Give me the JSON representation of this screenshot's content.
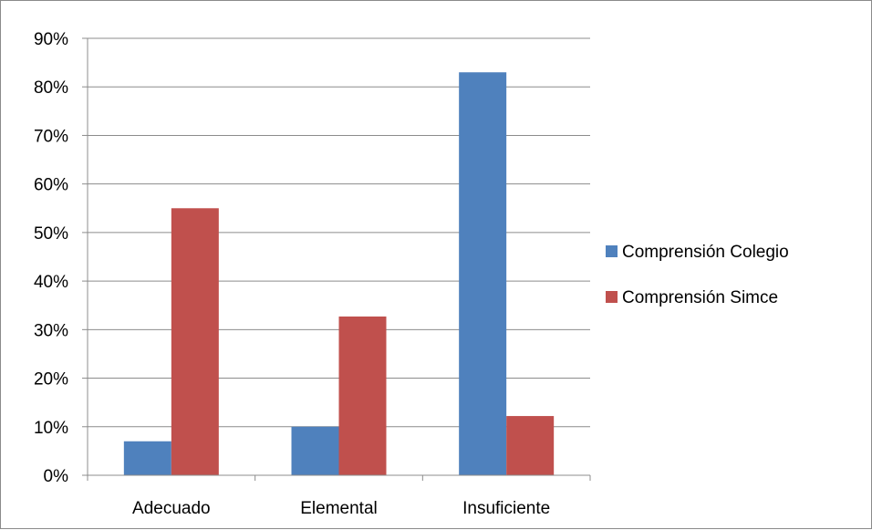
{
  "chart_data": {
    "type": "bar",
    "categories": [
      "Adecuado",
      "Elemental",
      "Insuficiente"
    ],
    "series": [
      {
        "name": "Comprensión Colegio",
        "values": [
          7,
          10,
          83
        ],
        "color": "#4F81BD"
      },
      {
        "name": "Comprensión Simce",
        "values": [
          55,
          32.7,
          12.2
        ],
        "color": "#C0504D"
      }
    ],
    "ylim": [
      0,
      90
    ],
    "yticks": [
      "0%",
      "10%",
      "20%",
      "30%",
      "40%",
      "50%",
      "60%",
      "70%",
      "80%",
      "90%"
    ],
    "grid": true,
    "legend": "right"
  }
}
